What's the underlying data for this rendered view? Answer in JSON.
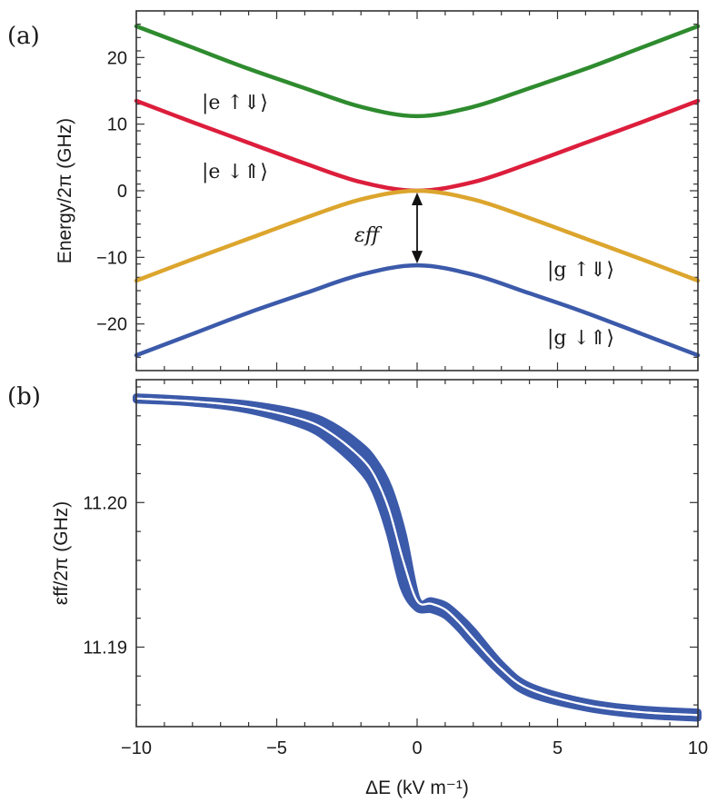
{
  "chart_data": [
    {
      "panel_label": "(a)",
      "type": "line",
      "ylabel": "Energy/2π (GHz)",
      "xlim": [
        -10,
        10
      ],
      "ylim": [
        -27,
        27
      ],
      "xticks": [
        -10,
        -5,
        0,
        5,
        10
      ],
      "yticks": [
        -20,
        -10,
        0,
        10,
        20
      ],
      "ytick_labels": [
        "−20",
        "−10",
        "0",
        "10",
        "20"
      ],
      "series": [
        {
          "name": "|e ↑⇓⟩",
          "color": "#2e8b2e",
          "x": [
            -10,
            -8,
            -6,
            -4,
            -2,
            0,
            2,
            4,
            6,
            8,
            10
          ],
          "values": [
            24.7,
            21.5,
            18.3,
            15.4,
            12.6,
            11.2,
            12.6,
            15.4,
            18.3,
            21.5,
            24.7
          ]
        },
        {
          "name": "|e ↓⇑⟩",
          "color": "#dc1e3c",
          "x": [
            -10,
            -8,
            -6,
            -4,
            -2,
            0,
            2,
            4,
            6,
            8,
            10
          ],
          "values": [
            13.5,
            10.3,
            7.2,
            4.1,
            1.3,
            0.0,
            1.3,
            4.1,
            7.2,
            10.3,
            13.5
          ]
        },
        {
          "name": "|g ↑⇓⟩",
          "color": "#dca52d",
          "x": [
            -10,
            -8,
            -6,
            -4,
            -2,
            0,
            2,
            4,
            6,
            8,
            10
          ],
          "values": [
            -13.5,
            -10.3,
            -7.2,
            -4.1,
            -1.3,
            0.0,
            -1.3,
            -4.1,
            -7.2,
            -10.3,
            -13.5
          ]
        },
        {
          "name": "|g ↓⇑⟩",
          "color": "#3c5aaa",
          "x": [
            -10,
            -8,
            -6,
            -4,
            -2,
            0,
            2,
            4,
            6,
            8,
            10
          ],
          "values": [
            -24.7,
            -21.5,
            -18.3,
            -15.4,
            -12.6,
            -11.2,
            -12.6,
            -15.4,
            -18.3,
            -21.5,
            -24.7
          ]
        }
      ],
      "annotations": [
        {
          "text": "|e ↑⇓⟩"
        },
        {
          "text": "|e ↓⇑⟩"
        },
        {
          "text": "|g ↑⇓⟩"
        },
        {
          "text": "|g ↓⇑⟩"
        },
        {
          "text": "εff",
          "arrow_from": [
            0,
            0
          ],
          "arrow_to": [
            0,
            -11.2
          ]
        }
      ]
    },
    {
      "panel_label": "(b)",
      "type": "line",
      "xlabel": "ΔE (kV m⁻¹)",
      "ylabel": "εff/2π (GHz)",
      "xlim": [
        -10,
        10
      ],
      "ylim": [
        11.1845,
        11.2085
      ],
      "xticks": [
        -10,
        -5,
        0,
        5,
        10
      ],
      "xtick_labels": [
        "−10",
        "−5",
        "0",
        "5",
        "10"
      ],
      "yticks": [
        11.19,
        11.2
      ],
      "ytick_labels": [
        "11.19",
        "11.20"
      ],
      "series": [
        {
          "name": "εff (band)",
          "color": "#3c5aaa",
          "style": "thick-band",
          "x": [
            -10,
            -8,
            -6,
            -4,
            -3,
            -2,
            -1.5,
            -1,
            -0.5,
            0,
            0.5,
            1,
            1.5,
            2,
            3,
            4,
            6,
            8,
            10
          ],
          "values": [
            11.2072,
            11.207,
            11.2066,
            11.2057,
            11.2047,
            11.2031,
            11.2018,
            11.1995,
            11.196,
            11.1932,
            11.193,
            11.1926,
            11.1917,
            11.1906,
            11.1885,
            11.1871,
            11.186,
            11.1855,
            11.1853
          ],
          "upper": [
            11.2073,
            11.2071,
            11.2068,
            11.2061,
            11.2053,
            11.2039,
            11.2028,
            11.201,
            11.1978,
            11.1933,
            11.1932,
            11.1929,
            11.1921,
            11.1911,
            11.1888,
            11.1873,
            11.1862,
            11.1857,
            11.1855
          ],
          "lower": [
            11.2071,
            11.2069,
            11.2064,
            11.2053,
            11.2041,
            11.2023,
            11.2008,
            11.198,
            11.1942,
            11.1927,
            11.1926,
            11.1922,
            11.1913,
            11.1902,
            11.1882,
            11.1868,
            11.1858,
            11.1853,
            11.1851
          ]
        },
        {
          "name": "εff (dashed)",
          "color": "#ffffff",
          "style": "dashed",
          "x": [
            -10,
            -8,
            -6,
            -4,
            -3,
            -2,
            -1.5,
            -1,
            -0.5,
            0,
            0.5,
            1,
            1.5,
            2,
            3,
            4,
            6,
            8,
            10
          ],
          "values": [
            11.2072,
            11.207,
            11.2066,
            11.2057,
            11.2047,
            11.2031,
            11.2018,
            11.1995,
            11.196,
            11.1932,
            11.193,
            11.1926,
            11.1917,
            11.1906,
            11.1885,
            11.1871,
            11.186,
            11.1855,
            11.1853
          ]
        }
      ]
    }
  ]
}
